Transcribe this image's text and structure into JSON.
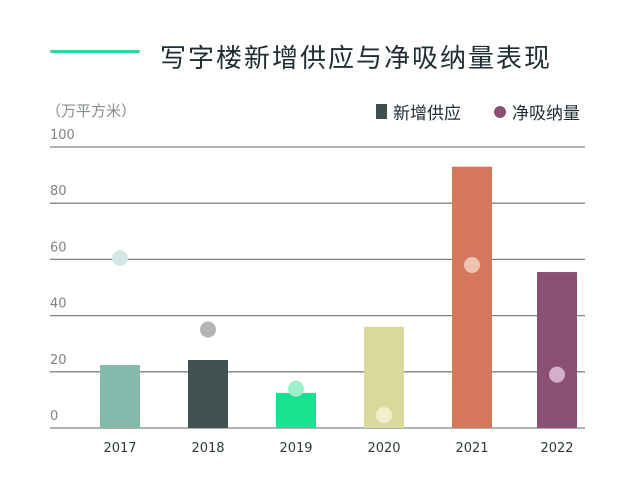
{
  "chart_data": {
    "type": "bar",
    "title": "写字楼新增供应与净吸纳量表现",
    "ylabel": "（万平方米）",
    "xlabel": "",
    "ylim": [
      0,
      100
    ],
    "yticks": [
      "0",
      "20",
      "40",
      "60",
      "80",
      "100"
    ],
    "grid": true,
    "legend_position": "top-right",
    "categories": [
      "2017",
      "2018",
      "2019",
      "2020",
      "2021",
      "2022"
    ],
    "series": [
      {
        "name": "新增供应",
        "kind": "bar",
        "values": [
          22.4,
          24.2,
          12.5,
          36,
          93,
          55.5
        ],
        "colors": [
          "#84b9ac",
          "#425253",
          "#18e18f",
          "#dbd89c",
          "#d4775b",
          "#8a4f72"
        ]
      },
      {
        "name": "净吸纳量",
        "kind": "dot",
        "values": [
          60.5,
          35,
          14,
          4.6,
          58,
          19
        ],
        "colors": [
          "#d3e8e4",
          "#b3b5b5",
          "#9cf0c8",
          "#f3efcd",
          "#eec3ad",
          "#d5aecb"
        ]
      }
    ],
    "legend_colors": {
      "supply": "#3f4f4f",
      "absorption": "#8a4f72"
    }
  }
}
